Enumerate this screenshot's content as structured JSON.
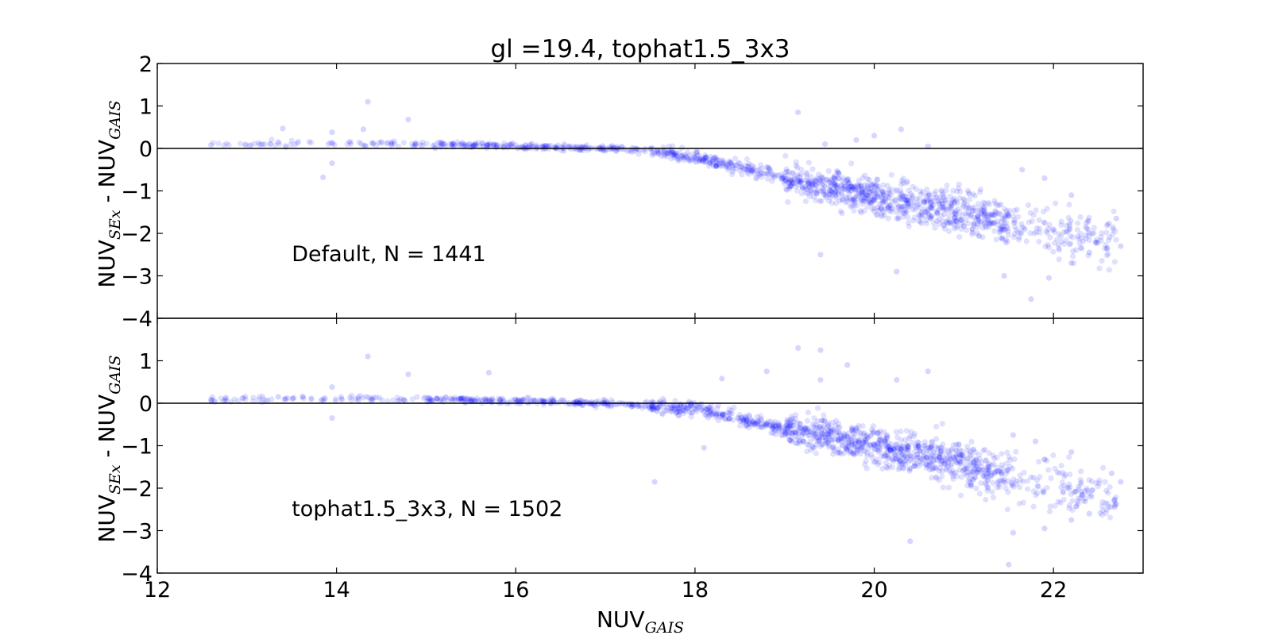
{
  "chart_data": {
    "type": "scatter",
    "title": "gl =19.4, tophat1.5_3x3",
    "xlabel": {
      "main": "NUV",
      "sub": "GAIS"
    },
    "ylabel": {
      "main1": "NUV",
      "sub1": "SEx",
      "sep": " - ",
      "main2": "NUV",
      "sub2": "GAIS"
    },
    "xlim": [
      12,
      23
    ],
    "xticks": [
      12,
      14,
      16,
      18,
      20,
      22
    ],
    "marker_color": "#0000ff",
    "marker_alpha": 0.12,
    "reference_line_y": 0,
    "grid": false,
    "panels": [
      {
        "label": "Default, N = 1441",
        "n": 1441,
        "ylim": [
          -4,
          2
        ],
        "yticks": [
          2,
          1,
          0,
          -1,
          -2,
          -3,
          -4
        ],
        "ytick_labels": [
          "2",
          "1",
          "0",
          "−1",
          "−2",
          "−3",
          "−4"
        ],
        "trend": {
          "x": [
            12.5,
            14,
            15,
            16,
            17,
            17.5,
            18,
            18.5,
            19,
            19.5,
            20,
            20.5,
            21,
            21.5,
            22,
            22.8
          ],
          "y": [
            0.1,
            0.12,
            0.1,
            0.05,
            0.0,
            -0.05,
            -0.2,
            -0.45,
            -0.7,
            -0.9,
            -1.1,
            -1.3,
            -1.5,
            -1.75,
            -2.0,
            -2.2
          ]
        },
        "outliers": [
          {
            "x": 12.6,
            "y": 0.08
          },
          {
            "x": 13.4,
            "y": 0.47
          },
          {
            "x": 13.35,
            "y": 0.15
          },
          {
            "x": 13.95,
            "y": 0.38
          },
          {
            "x": 13.85,
            "y": -0.68
          },
          {
            "x": 13.95,
            "y": -0.35
          },
          {
            "x": 14.35,
            "y": 1.1
          },
          {
            "x": 14.3,
            "y": 0.45
          },
          {
            "x": 14.8,
            "y": 0.68
          },
          {
            "x": 19.15,
            "y": 0.85
          },
          {
            "x": 19.45,
            "y": 0.1
          },
          {
            "x": 20.0,
            "y": 0.3
          },
          {
            "x": 20.3,
            "y": 0.45
          },
          {
            "x": 19.8,
            "y": 0.2
          },
          {
            "x": 20.6,
            "y": 0.05
          },
          {
            "x": 19.4,
            "y": -2.5
          },
          {
            "x": 20.25,
            "y": -2.9
          },
          {
            "x": 21.75,
            "y": -3.55
          },
          {
            "x": 21.45,
            "y": -3.0
          },
          {
            "x": 22.2,
            "y": -2.7
          },
          {
            "x": 22.7,
            "y": -1.65
          },
          {
            "x": 22.75,
            "y": -2.3
          },
          {
            "x": 22.6,
            "y": -2.35
          },
          {
            "x": 21.95,
            "y": -3.05
          },
          {
            "x": 22.4,
            "y": -2.45
          },
          {
            "x": 21.65,
            "y": -0.5
          },
          {
            "x": 22.2,
            "y": -1.1
          },
          {
            "x": 21.9,
            "y": -0.7
          }
        ]
      },
      {
        "label": "tophat1.5_3x3, N = 1502",
        "n": 1502,
        "ylim": [
          -4,
          2
        ],
        "yticks": [
          1,
          0,
          -1,
          -2,
          -3,
          -4
        ],
        "ytick_labels": [
          "1",
          "0",
          "−1",
          "−2",
          "−3",
          "−4"
        ],
        "trend": {
          "x": [
            12.5,
            14,
            15,
            16,
            17,
            17.5,
            18,
            18.5,
            19,
            19.5,
            20,
            20.5,
            21,
            21.5,
            22,
            22.8
          ],
          "y": [
            0.08,
            0.12,
            0.1,
            0.05,
            0.0,
            -0.05,
            -0.15,
            -0.35,
            -0.6,
            -0.8,
            -1.0,
            -1.2,
            -1.45,
            -1.75,
            -2.0,
            -2.2
          ]
        },
        "outliers": [
          {
            "x": 12.6,
            "y": 0.08
          },
          {
            "x": 13.35,
            "y": 0.15
          },
          {
            "x": 13.95,
            "y": 0.38
          },
          {
            "x": 13.95,
            "y": -0.35
          },
          {
            "x": 14.35,
            "y": 1.1
          },
          {
            "x": 14.8,
            "y": 0.68
          },
          {
            "x": 15.7,
            "y": 0.72
          },
          {
            "x": 19.15,
            "y": 1.3
          },
          {
            "x": 19.4,
            "y": 1.25
          },
          {
            "x": 18.8,
            "y": 0.75
          },
          {
            "x": 19.7,
            "y": 0.9
          },
          {
            "x": 20.6,
            "y": 0.75
          },
          {
            "x": 20.25,
            "y": 0.55
          },
          {
            "x": 19.4,
            "y": 0.55
          },
          {
            "x": 18.3,
            "y": 0.58
          },
          {
            "x": 17.55,
            "y": -1.85
          },
          {
            "x": 18.1,
            "y": -1.05
          },
          {
            "x": 20.4,
            "y": -3.25
          },
          {
            "x": 21.5,
            "y": -3.8
          },
          {
            "x": 21.55,
            "y": -3.05
          },
          {
            "x": 22.2,
            "y": -2.75
          },
          {
            "x": 22.75,
            "y": -1.85
          },
          {
            "x": 22.65,
            "y": -1.65
          },
          {
            "x": 21.9,
            "y": -2.95
          },
          {
            "x": 22.4,
            "y": -2.6
          },
          {
            "x": 21.55,
            "y": -0.75
          },
          {
            "x": 21.8,
            "y": -0.9
          },
          {
            "x": 22.2,
            "y": -1.15
          }
        ]
      }
    ]
  }
}
